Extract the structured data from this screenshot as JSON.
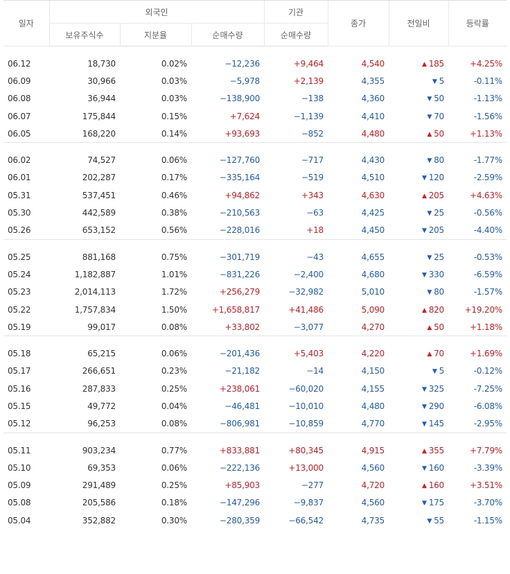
{
  "header": {
    "date": "일자",
    "foreign": "외국인",
    "institution": "기관",
    "close": "종가",
    "change": "전일비",
    "rate": "등락률",
    "holdings": "보유주식수",
    "share": "지분율",
    "foreign_net": "순매수량",
    "inst_net": "순매수량"
  },
  "colors": {
    "up": "#e3171c",
    "down": "#1a5ec2",
    "text": "#333333"
  },
  "icons": {
    "up": "triangle-up-icon",
    "down": "triangle-down-icon"
  },
  "groups": [
    [
      [
        "06.12",
        "18,730",
        "0.02%",
        "−12,236",
        "+9,464",
        "4,540",
        "185",
        "+4.25%"
      ],
      [
        "06.09",
        "30,966",
        "0.03%",
        "−5,978",
        "+2,139",
        "4,355",
        "5",
        "-0.11%"
      ],
      [
        "06.08",
        "36,944",
        "0.03%",
        "−138,900",
        "−138",
        "4,360",
        "50",
        "-1.13%"
      ],
      [
        "06.07",
        "175,844",
        "0.15%",
        "+7,624",
        "−1,139",
        "4,410",
        "70",
        "-1.56%"
      ],
      [
        "06.05",
        "168,220",
        "0.14%",
        "+93,693",
        "−852",
        "4,480",
        "50",
        "+1.13%"
      ]
    ],
    [
      [
        "06.02",
        "74,527",
        "0.06%",
        "−127,760",
        "−717",
        "4,430",
        "80",
        "-1.77%"
      ],
      [
        "06.01",
        "202,287",
        "0.17%",
        "−335,164",
        "−519",
        "4,510",
        "120",
        "-2.59%"
      ],
      [
        "05.31",
        "537,451",
        "0.46%",
        "+94,862",
        "+343",
        "4,630",
        "205",
        "+4.63%"
      ],
      [
        "05.30",
        "442,589",
        "0.38%",
        "−210,563",
        "−63",
        "4,425",
        "25",
        "-0.56%"
      ],
      [
        "05.26",
        "653,152",
        "0.56%",
        "−228,016",
        "+18",
        "4,450",
        "205",
        "-4.40%"
      ]
    ],
    [
      [
        "05.25",
        "881,168",
        "0.75%",
        "−301,719",
        "−43",
        "4,655",
        "25",
        "-0.53%"
      ],
      [
        "05.24",
        "1,182,887",
        "1.01%",
        "−831,226",
        "−2,400",
        "4,680",
        "330",
        "-6.59%"
      ],
      [
        "05.23",
        "2,014,113",
        "1.72%",
        "+256,279",
        "−32,982",
        "5,010",
        "80",
        "-1.57%"
      ],
      [
        "05.22",
        "1,757,834",
        "1.50%",
        "+1,658,817",
        "+41,486",
        "5,090",
        "820",
        "+19.20%"
      ],
      [
        "05.19",
        "99,017",
        "0.08%",
        "+33,802",
        "−3,077",
        "4,270",
        "50",
        "+1.18%"
      ]
    ],
    [
      [
        "05.18",
        "65,215",
        "0.06%",
        "−201,436",
        "+5,403",
        "4,220",
        "70",
        "+1.69%"
      ],
      [
        "05.17",
        "266,651",
        "0.23%",
        "−21,182",
        "−14",
        "4,150",
        "5",
        "-0.12%"
      ],
      [
        "05.16",
        "287,833",
        "0.25%",
        "+238,061",
        "−60,020",
        "4,155",
        "325",
        "-7.25%"
      ],
      [
        "05.15",
        "49,772",
        "0.04%",
        "−46,481",
        "−10,010",
        "4,480",
        "290",
        "-6.08%"
      ],
      [
        "05.12",
        "96,253",
        "0.08%",
        "−806,981",
        "−10,859",
        "4,770",
        "145",
        "-2.95%"
      ]
    ],
    [
      [
        "05.11",
        "903,234",
        "0.77%",
        "+833,881",
        "+80,345",
        "4,915",
        "355",
        "+7.79%"
      ],
      [
        "05.10",
        "69,353",
        "0.06%",
        "−222,136",
        "+13,000",
        "4,560",
        "160",
        "-3.39%"
      ],
      [
        "05.09",
        "291,489",
        "0.25%",
        "+85,903",
        "−277",
        "4,720",
        "160",
        "+3.51%"
      ],
      [
        "05.08",
        "205,586",
        "0.18%",
        "−147,296",
        "−9,837",
        "4,560",
        "175",
        "-3.70%"
      ],
      [
        "05.04",
        "352,882",
        "0.30%",
        "−280,359",
        "−66,542",
        "4,735",
        "55",
        "-1.15%"
      ]
    ]
  ]
}
